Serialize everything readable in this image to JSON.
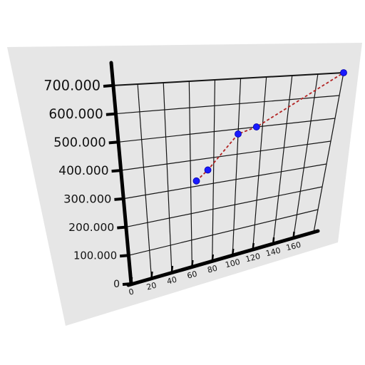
{
  "chart_data": {
    "type": "scatter",
    "title": "",
    "xlabel": "",
    "ylabel": "",
    "x_ticks": [
      "0",
      "20",
      "40",
      "60",
      "80",
      "100",
      "120",
      "140",
      "160"
    ],
    "y_ticks": [
      "0",
      "100.000",
      "200.000",
      "300.000",
      "400.000",
      "500.000",
      "600.000",
      "700.000"
    ],
    "xlim": [
      0,
      180
    ],
    "ylim": [
      0,
      700000
    ],
    "grid": true,
    "series": [
      {
        "values_x": [
          65,
          75,
          100,
          115,
          185
        ],
        "values_y": [
          320000,
          355000,
          480000,
          500000,
          700000
        ],
        "marker_color": "#1a1aff",
        "line_color": "#b22222",
        "line_style": "dashed"
      }
    ]
  }
}
